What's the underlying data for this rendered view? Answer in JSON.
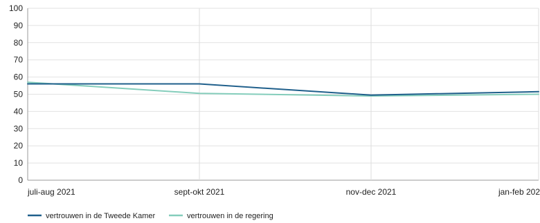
{
  "chart_data": {
    "type": "line",
    "title": "",
    "xlabel": "",
    "ylabel": "",
    "categories": [
      "juli-aug 2021",
      "sept-okt 2021",
      "nov-dec 2021",
      "jan-feb 202"
    ],
    "ylim": [
      0,
      100
    ],
    "yticks": [
      0,
      10,
      20,
      30,
      40,
      50,
      60,
      70,
      80,
      90,
      100
    ],
    "grid": true,
    "legend_position": "bottom-left",
    "series": [
      {
        "name": "vertrouwen in de Tweede Kamer",
        "color": "#1f5f8b",
        "values": [
          56,
          56,
          49.5,
          51.5
        ]
      },
      {
        "name": "vertrouwen in de regering",
        "color": "#84cdbb",
        "values": [
          57,
          50.5,
          49,
          50
        ]
      }
    ]
  }
}
